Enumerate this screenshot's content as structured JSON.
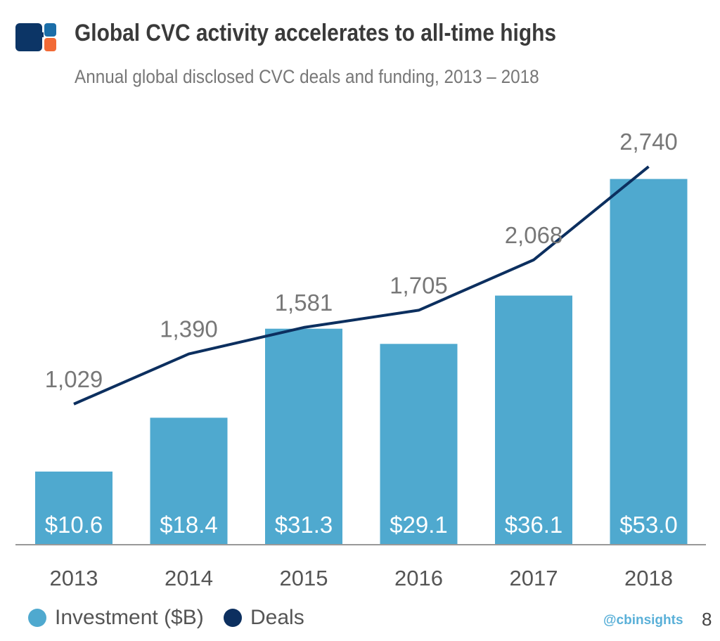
{
  "header": {
    "title": "Global CVC activity accelerates to all-time highs",
    "subtitle": "Annual global disclosed CVC deals and funding, 2013 – 2018",
    "logo_colors": {
      "navy": "#0c3566",
      "blue": "#1b6ea8",
      "orange": "#f26a36"
    }
  },
  "chart_data": {
    "type": "bar+line",
    "categories": [
      "2013",
      "2014",
      "2015",
      "2016",
      "2017",
      "2018"
    ],
    "series": [
      {
        "name": "Investment ($B)",
        "type": "bar",
        "values": [
          10.6,
          18.4,
          31.3,
          29.1,
          36.1,
          53.0
        ],
        "labels": [
          "$10.6",
          "$18.4",
          "$31.3",
          "$29.1",
          "$36.1",
          "$53.0"
        ],
        "color": "#4fa9cf",
        "ylim": [
          0,
          60.6
        ]
      },
      {
        "name": "Deals",
        "type": "line",
        "values": [
          1029,
          1390,
          1581,
          1705,
          2068,
          2740
        ],
        "labels": [
          "1,029",
          "1,390",
          "1,581",
          "1,705",
          "2,068",
          "2,740"
        ],
        "color": "#0c2f5f",
        "ylim": [
          0,
          3014
        ]
      }
    ],
    "grid": false,
    "legend_position": "bottom-left"
  },
  "footer": {
    "handle": "@cbinsights",
    "page": "8"
  }
}
